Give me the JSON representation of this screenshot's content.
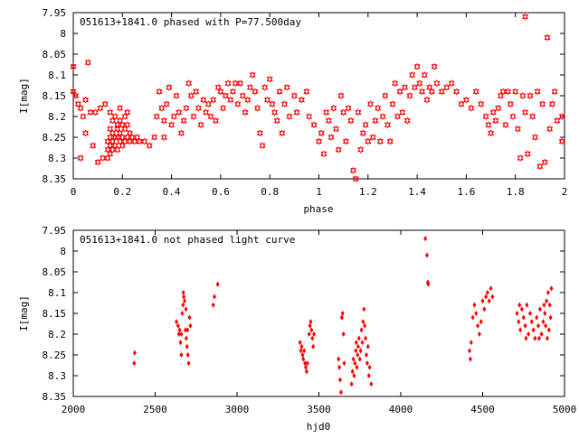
{
  "chart_data": [
    {
      "type": "scatter",
      "title": "051613+1841.0 phased with P=77.500day",
      "xlabel": "phase",
      "ylabel": "I[mag]",
      "xlim": [
        0,
        2
      ],
      "ylim": [
        7.95,
        8.35
      ],
      "y_inverted": true,
      "xticks": [
        "0",
        "0.2",
        "0.4",
        "0.6",
        "0.8",
        "1",
        "1.2",
        "1.4",
        "1.6",
        "1.8",
        "2"
      ],
      "yticks": [
        "7.95",
        "8",
        "8.05",
        "8.1",
        "8.15",
        "8.2",
        "8.25",
        "8.3",
        "8.35"
      ],
      "marker": "star",
      "color": "#ff0000",
      "points": [
        [
          0.0,
          8.08
        ],
        [
          0.0,
          8.14
        ],
        [
          0.01,
          8.15
        ],
        [
          0.02,
          8.17
        ],
        [
          0.03,
          8.18
        ],
        [
          0.03,
          8.3
        ],
        [
          0.04,
          8.2
        ],
        [
          0.05,
          8.16
        ],
        [
          0.05,
          8.24
        ],
        [
          0.06,
          8.07
        ],
        [
          0.07,
          8.19
        ],
        [
          0.08,
          8.27
        ],
        [
          0.09,
          8.19
        ],
        [
          0.1,
          8.31
        ],
        [
          0.11,
          8.18
        ],
        [
          0.12,
          8.3
        ],
        [
          0.13,
          8.17
        ],
        [
          0.14,
          8.26
        ],
        [
          0.14,
          8.28
        ],
        [
          0.14,
          8.3
        ],
        [
          0.15,
          8.23
        ],
        [
          0.15,
          8.25
        ],
        [
          0.15,
          8.27
        ],
        [
          0.15,
          8.29
        ],
        [
          0.16,
          8.24
        ],
        [
          0.16,
          8.26
        ],
        [
          0.16,
          8.28
        ],
        [
          0.17,
          8.2
        ],
        [
          0.17,
          8.25
        ],
        [
          0.17,
          8.27
        ],
        [
          0.18,
          8.23
        ],
        [
          0.18,
          8.25
        ],
        [
          0.18,
          8.28
        ],
        [
          0.19,
          8.21
        ],
        [
          0.19,
          8.24
        ],
        [
          0.19,
          8.26
        ],
        [
          0.2,
          8.22
        ],
        [
          0.2,
          8.25
        ],
        [
          0.2,
          8.27
        ],
        [
          0.21,
          8.23
        ],
        [
          0.21,
          8.26
        ],
        [
          0.22,
          8.22
        ],
        [
          0.22,
          8.25
        ],
        [
          0.23,
          8.24
        ],
        [
          0.23,
          8.26
        ],
        [
          0.24,
          8.25
        ],
        [
          0.25,
          8.26
        ],
        [
          0.26,
          8.25
        ],
        [
          0.27,
          8.26
        ],
        [
          0.15,
          8.19
        ],
        [
          0.16,
          8.21
        ],
        [
          0.18,
          8.22
        ],
        [
          0.19,
          8.18
        ],
        [
          0.21,
          8.2
        ],
        [
          0.22,
          8.19
        ],
        [
          0.29,
          8.26
        ],
        [
          0.31,
          8.27
        ],
        [
          0.33,
          8.25
        ],
        [
          0.34,
          8.2
        ],
        [
          0.35,
          8.14
        ],
        [
          0.36,
          8.18
        ],
        [
          0.37,
          8.21
        ],
        [
          0.37,
          8.25
        ],
        [
          0.38,
          8.17
        ],
        [
          0.39,
          8.13
        ],
        [
          0.4,
          8.22
        ],
        [
          0.41,
          8.2
        ],
        [
          0.42,
          8.15
        ],
        [
          0.43,
          8.19
        ],
        [
          0.44,
          8.24
        ],
        [
          0.45,
          8.21
        ],
        [
          0.46,
          8.18
        ],
        [
          0.47,
          8.12
        ],
        [
          0.48,
          8.15
        ],
        [
          0.49,
          8.2
        ],
        [
          0.5,
          8.14
        ],
        [
          0.51,
          8.18
        ],
        [
          0.52,
          8.22
        ],
        [
          0.53,
          8.16
        ],
        [
          0.54,
          8.19
        ],
        [
          0.55,
          8.17
        ],
        [
          0.56,
          8.2
        ],
        [
          0.57,
          8.16
        ],
        [
          0.58,
          8.21
        ],
        [
          0.59,
          8.13
        ],
        [
          0.6,
          8.14
        ],
        [
          0.61,
          8.18
        ],
        [
          0.62,
          8.15
        ],
        [
          0.63,
          8.12
        ],
        [
          0.64,
          8.16
        ],
        [
          0.65,
          8.14
        ],
        [
          0.66,
          8.12
        ],
        [
          0.67,
          8.17
        ],
        [
          0.68,
          8.12
        ],
        [
          0.69,
          8.15
        ],
        [
          0.7,
          8.19
        ],
        [
          0.71,
          8.16
        ],
        [
          0.72,
          8.13
        ],
        [
          0.73,
          8.1
        ],
        [
          0.74,
          8.14
        ],
        [
          0.75,
          8.18
        ],
        [
          0.76,
          8.24
        ],
        [
          0.77,
          8.27
        ],
        [
          0.78,
          8.13
        ],
        [
          0.79,
          8.16
        ],
        [
          0.8,
          8.11
        ],
        [
          0.81,
          8.17
        ],
        [
          0.82,
          8.19
        ],
        [
          0.83,
          8.21
        ],
        [
          0.84,
          8.14
        ],
        [
          0.85,
          8.24
        ],
        [
          0.86,
          8.17
        ],
        [
          0.87,
          8.13
        ],
        [
          0.88,
          8.2
        ],
        [
          0.9,
          8.15
        ],
        [
          0.91,
          8.19
        ],
        [
          0.93,
          8.16
        ],
        [
          0.95,
          8.14
        ],
        [
          0.96,
          8.2
        ],
        [
          0.98,
          8.22
        ],
        [
          1.0,
          8.26
        ],
        [
          1.01,
          8.24
        ],
        [
          1.02,
          8.29
        ],
        [
          1.03,
          8.19
        ],
        [
          1.04,
          8.21
        ],
        [
          1.05,
          8.25
        ],
        [
          1.06,
          8.18
        ],
        [
          1.07,
          8.23
        ],
        [
          1.08,
          8.28
        ],
        [
          1.09,
          8.15
        ],
        [
          1.1,
          8.19
        ],
        [
          1.11,
          8.26
        ],
        [
          1.12,
          8.18
        ],
        [
          1.13,
          8.21
        ],
        [
          1.14,
          8.33
        ],
        [
          1.15,
          8.35
        ],
        [
          1.16,
          8.19
        ],
        [
          1.17,
          8.28
        ],
        [
          1.18,
          8.24
        ],
        [
          1.19,
          8.22
        ],
        [
          1.2,
          8.26
        ],
        [
          1.21,
          8.17
        ],
        [
          1.22,
          8.25
        ],
        [
          1.23,
          8.21
        ],
        [
          1.24,
          8.18
        ],
        [
          1.25,
          8.26
        ],
        [
          1.26,
          8.2
        ],
        [
          1.27,
          8.15
        ],
        [
          1.28,
          8.22
        ],
        [
          1.29,
          8.26
        ],
        [
          1.3,
          8.17
        ],
        [
          1.31,
          8.12
        ],
        [
          1.32,
          8.2
        ],
        [
          1.33,
          8.14
        ],
        [
          1.34,
          8.19
        ],
        [
          1.35,
          8.13
        ],
        [
          1.36,
          8.21
        ],
        [
          1.37,
          8.15
        ],
        [
          1.38,
          8.1
        ],
        [
          1.39,
          8.13
        ],
        [
          1.4,
          8.08
        ],
        [
          1.41,
          8.12
        ],
        [
          1.42,
          8.14
        ],
        [
          1.43,
          8.1
        ],
        [
          1.44,
          8.16
        ],
        [
          1.45,
          8.13
        ],
        [
          1.46,
          8.14
        ],
        [
          1.47,
          8.08
        ],
        [
          1.48,
          8.12
        ],
        [
          1.5,
          8.14
        ],
        [
          1.52,
          8.13
        ],
        [
          1.54,
          8.12
        ],
        [
          1.56,
          8.14
        ],
        [
          1.58,
          8.17
        ],
        [
          1.6,
          8.16
        ],
        [
          1.62,
          8.18
        ],
        [
          1.64,
          8.14
        ],
        [
          1.66,
          8.17
        ],
        [
          1.68,
          8.2
        ],
        [
          1.69,
          8.22
        ],
        [
          1.7,
          8.24
        ],
        [
          1.71,
          8.19
        ],
        [
          1.72,
          8.21
        ],
        [
          1.73,
          8.18
        ],
        [
          1.74,
          8.15
        ],
        [
          1.75,
          8.14
        ],
        [
          1.76,
          8.22
        ],
        [
          1.77,
          8.14
        ],
        [
          1.78,
          8.17
        ],
        [
          1.79,
          8.2
        ],
        [
          1.8,
          8.14
        ],
        [
          1.81,
          8.23
        ],
        [
          1.82,
          8.3
        ],
        [
          1.83,
          8.15
        ],
        [
          1.84,
          8.19
        ],
        [
          1.84,
          7.96
        ],
        [
          1.85,
          8.29
        ],
        [
          1.86,
          8.15
        ],
        [
          1.87,
          8.2
        ],
        [
          1.88,
          8.25
        ],
        [
          1.89,
          8.14
        ],
        [
          1.9,
          8.32
        ],
        [
          1.91,
          8.17
        ],
        [
          1.92,
          8.31
        ],
        [
          1.93,
          8.01
        ],
        [
          1.94,
          8.23
        ],
        [
          1.95,
          8.17
        ],
        [
          1.96,
          8.14
        ],
        [
          1.97,
          8.21
        ],
        [
          1.99,
          8.2
        ],
        [
          1.99,
          8.26
        ]
      ]
    },
    {
      "type": "scatter",
      "title": "051613+1841.0 not phased light curve",
      "xlabel": "hjd0",
      "ylabel": "I[mag]",
      "xlim": [
        2000,
        5000
      ],
      "ylim": [
        7.95,
        8.35
      ],
      "y_inverted": true,
      "xticks": [
        "2000",
        "2500",
        "3000",
        "3500",
        "4000",
        "4500",
        "5000"
      ],
      "yticks": [
        "7.95",
        "8",
        "8.05",
        "8.1",
        "8.15",
        "8.2",
        "8.25",
        "8.3",
        "8.35"
      ],
      "marker": "diamond",
      "color": "#ff0000",
      "points": [
        [
          2375,
          8.245
        ],
        [
          2372,
          8.27
        ],
        [
          2630,
          8.17
        ],
        [
          2640,
          8.18
        ],
        [
          2645,
          8.2
        ],
        [
          2650,
          8.19
        ],
        [
          2655,
          8.22
        ],
        [
          2660,
          8.25
        ],
        [
          2665,
          8.15
        ],
        [
          2670,
          8.13
        ],
        [
          2675,
          8.11
        ],
        [
          2680,
          8.12
        ],
        [
          2685,
          8.19
        ],
        [
          2690,
          8.21
        ],
        [
          2695,
          8.23
        ],
        [
          2700,
          8.25
        ],
        [
          2705,
          8.27
        ],
        [
          2710,
          8.16
        ],
        [
          2715,
          8.18
        ],
        [
          2660,
          8.2
        ],
        [
          2672,
          8.1
        ],
        [
          2688,
          8.14
        ],
        [
          2698,
          8.19
        ],
        [
          2855,
          8.13
        ],
        [
          2862,
          8.11
        ],
        [
          2882,
          8.08
        ],
        [
          3385,
          8.22
        ],
        [
          3390,
          8.24
        ],
        [
          3395,
          8.23
        ],
        [
          3400,
          8.25
        ],
        [
          3405,
          8.26
        ],
        [
          3410,
          8.24
        ],
        [
          3415,
          8.27
        ],
        [
          3420,
          8.28
        ],
        [
          3425,
          8.29
        ],
        [
          3430,
          8.27
        ],
        [
          3440,
          8.2
        ],
        [
          3445,
          8.18
        ],
        [
          3450,
          8.17
        ],
        [
          3455,
          8.19
        ],
        [
          3460,
          8.21
        ],
        [
          3465,
          8.23
        ],
        [
          3470,
          8.2
        ],
        [
          3620,
          8.26
        ],
        [
          3625,
          8.28
        ],
        [
          3630,
          8.31
        ],
        [
          3635,
          8.34
        ],
        [
          3640,
          8.16
        ],
        [
          3645,
          8.15
        ],
        [
          3650,
          8.2
        ],
        [
          3655,
          8.27
        ],
        [
          3700,
          8.32
        ],
        [
          3705,
          8.29
        ],
        [
          3710,
          8.26
        ],
        [
          3715,
          8.3
        ],
        [
          3720,
          8.27
        ],
        [
          3725,
          8.24
        ],
        [
          3728,
          8.22
        ],
        [
          3732,
          8.28
        ],
        [
          3736,
          8.25
        ],
        [
          3740,
          8.23
        ],
        [
          3745,
          8.21
        ],
        [
          3750,
          8.26
        ],
        [
          3755,
          8.24
        ],
        [
          3760,
          8.19
        ],
        [
          3765,
          8.22
        ],
        [
          3770,
          8.17
        ],
        [
          3775,
          8.14
        ],
        [
          3780,
          8.18
        ],
        [
          3785,
          8.21
        ],
        [
          3790,
          8.25
        ],
        [
          3795,
          8.27
        ],
        [
          3800,
          8.23
        ],
        [
          3805,
          8.3
        ],
        [
          3810,
          8.28
        ],
        [
          3820,
          8.32
        ],
        [
          4150,
          7.97
        ],
        [
          4160,
          8.01
        ],
        [
          4165,
          8.075
        ],
        [
          4168,
          8.08
        ],
        [
          4420,
          8.24
        ],
        [
          4425,
          8.26
        ],
        [
          4430,
          8.22
        ],
        [
          4440,
          8.16
        ],
        [
          4450,
          8.13
        ],
        [
          4460,
          8.15
        ],
        [
          4470,
          8.18
        ],
        [
          4480,
          8.2
        ],
        [
          4490,
          8.17
        ],
        [
          4500,
          8.12
        ],
        [
          4510,
          8.14
        ],
        [
          4520,
          8.11
        ],
        [
          4530,
          8.1
        ],
        [
          4540,
          8.12
        ],
        [
          4550,
          8.09
        ],
        [
          4560,
          8.11
        ],
        [
          4710,
          8.15
        ],
        [
          4720,
          8.17
        ],
        [
          4730,
          8.19
        ],
        [
          4740,
          8.14
        ],
        [
          4750,
          8.16
        ],
        [
          4760,
          8.18
        ],
        [
          4770,
          8.13
        ],
        [
          4780,
          8.2
        ],
        [
          4790,
          8.15
        ],
        [
          4800,
          8.17
        ],
        [
          4810,
          8.19
        ],
        [
          4820,
          8.21
        ],
        [
          4830,
          8.16
        ],
        [
          4840,
          8.18
        ],
        [
          4850,
          8.14
        ],
        [
          4860,
          8.2
        ],
        [
          4870,
          8.17
        ],
        [
          4880,
          8.15
        ],
        [
          4890,
          8.12
        ],
        [
          4900,
          8.1
        ],
        [
          4910,
          8.13
        ],
        [
          4915,
          8.16
        ],
        [
          4920,
          8.09
        ],
        [
          4905,
          8.19
        ],
        [
          4895,
          8.21
        ],
        [
          4885,
          8.18
        ],
        [
          4875,
          8.13
        ],
        [
          4845,
          8.21
        ],
        [
          4765,
          8.21
        ],
        [
          4725,
          8.13
        ]
      ]
    }
  ]
}
